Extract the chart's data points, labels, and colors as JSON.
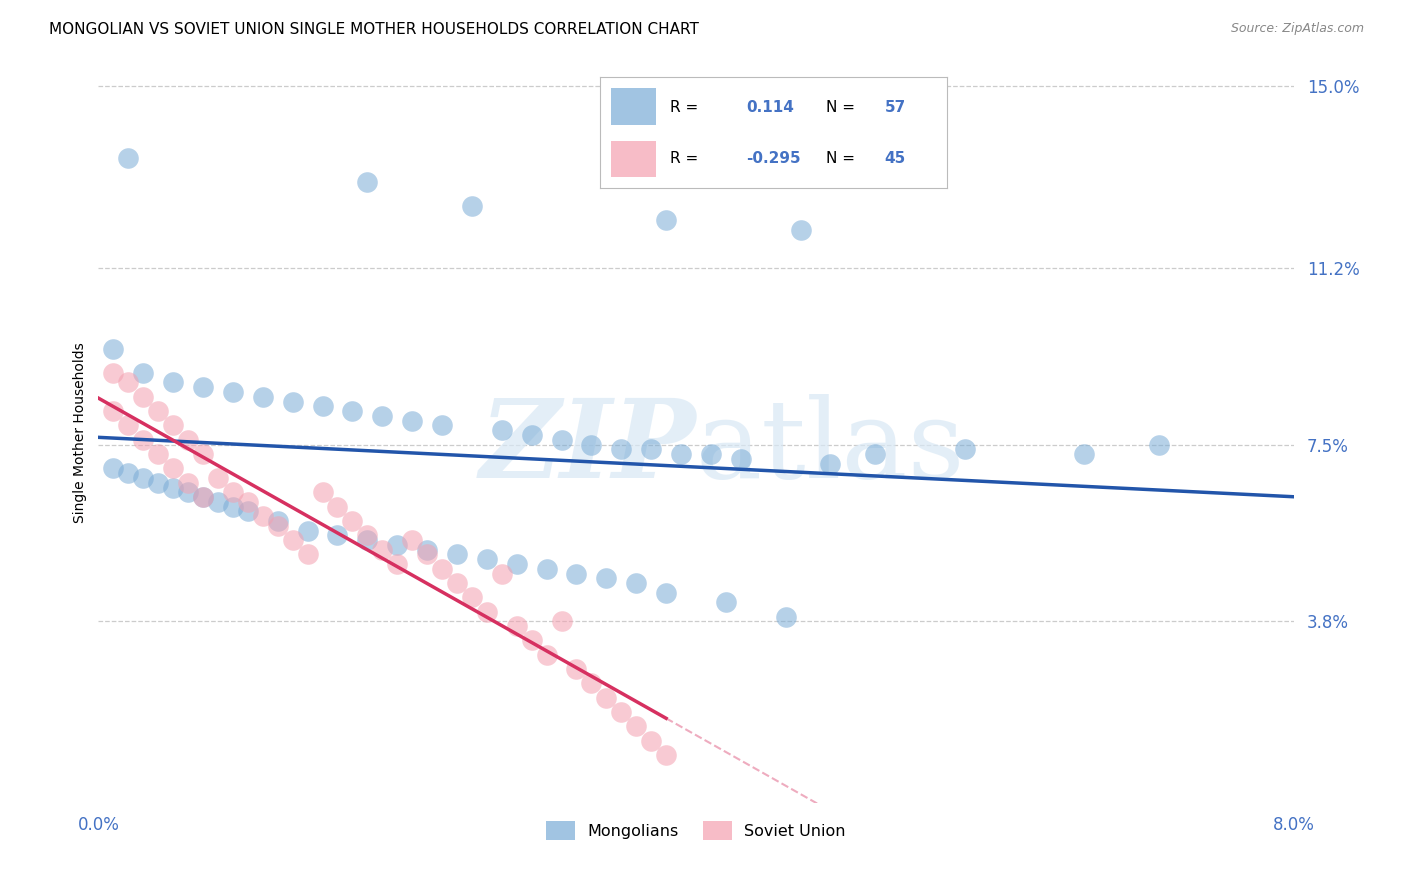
{
  "title": "MONGOLIAN VS SOVIET UNION SINGLE MOTHER HOUSEHOLDS CORRELATION CHART",
  "source": "Source: ZipAtlas.com",
  "tick_color": "#4472c4",
  "ylabel": "Single Mother Households",
  "xlim": [
    0.0,
    0.08
  ],
  "ylim": [
    0.0,
    0.155
  ],
  "mongolian_R": "0.114",
  "mongolian_N": "57",
  "soviet_R": "-0.295",
  "soviet_N": "45",
  "mongolian_color": "#7aacd6",
  "soviet_color": "#f4a0b0",
  "mongolian_line_color": "#2255aa",
  "soviet_line_color": "#d63060",
  "watermark": "ZIPatlas",
  "background_color": "#ffffff",
  "grid_color": "#cccccc",
  "title_fontsize": 11,
  "ytick_vals": [
    0.038,
    0.075,
    0.112,
    0.15
  ],
  "ytick_labels": [
    "3.8%",
    "7.5%",
    "11.2%",
    "15.0%"
  ],
  "mon_x": [
    0.002,
    0.018,
    0.025,
    0.038,
    0.047,
    0.001,
    0.003,
    0.005,
    0.007,
    0.009,
    0.011,
    0.013,
    0.015,
    0.017,
    0.019,
    0.021,
    0.023,
    0.027,
    0.029,
    0.031,
    0.033,
    0.035,
    0.037,
    0.039,
    0.041,
    0.043,
    0.049,
    0.052,
    0.058,
    0.066,
    0.071,
    0.001,
    0.002,
    0.003,
    0.004,
    0.005,
    0.006,
    0.007,
    0.008,
    0.009,
    0.01,
    0.012,
    0.014,
    0.016,
    0.018,
    0.02,
    0.022,
    0.024,
    0.026,
    0.028,
    0.03,
    0.032,
    0.034,
    0.036,
    0.038,
    0.042,
    0.046
  ],
  "mon_y": [
    0.135,
    0.13,
    0.125,
    0.122,
    0.12,
    0.095,
    0.09,
    0.088,
    0.087,
    0.086,
    0.085,
    0.084,
    0.083,
    0.082,
    0.081,
    0.08,
    0.079,
    0.078,
    0.077,
    0.076,
    0.075,
    0.074,
    0.074,
    0.073,
    0.073,
    0.072,
    0.071,
    0.073,
    0.074,
    0.073,
    0.075,
    0.07,
    0.069,
    0.068,
    0.067,
    0.066,
    0.065,
    0.064,
    0.063,
    0.062,
    0.061,
    0.059,
    0.057,
    0.056,
    0.055,
    0.054,
    0.053,
    0.052,
    0.051,
    0.05,
    0.049,
    0.048,
    0.047,
    0.046,
    0.044,
    0.042,
    0.039
  ],
  "sov_x": [
    0.001,
    0.001,
    0.002,
    0.002,
    0.003,
    0.003,
    0.004,
    0.004,
    0.005,
    0.005,
    0.006,
    0.006,
    0.007,
    0.007,
    0.008,
    0.009,
    0.01,
    0.011,
    0.012,
    0.013,
    0.014,
    0.015,
    0.016,
    0.017,
    0.018,
    0.019,
    0.02,
    0.021,
    0.022,
    0.023,
    0.024,
    0.025,
    0.026,
    0.027,
    0.028,
    0.029,
    0.03,
    0.031,
    0.032,
    0.033,
    0.034,
    0.035,
    0.036,
    0.037,
    0.038
  ],
  "sov_y": [
    0.09,
    0.082,
    0.088,
    0.079,
    0.085,
    0.076,
    0.082,
    0.073,
    0.079,
    0.07,
    0.076,
    0.067,
    0.073,
    0.064,
    0.068,
    0.065,
    0.063,
    0.06,
    0.058,
    0.055,
    0.052,
    0.065,
    0.062,
    0.059,
    0.056,
    0.053,
    0.05,
    0.055,
    0.052,
    0.049,
    0.046,
    0.043,
    0.04,
    0.048,
    0.037,
    0.034,
    0.031,
    0.038,
    0.028,
    0.025,
    0.022,
    0.019,
    0.016,
    0.013,
    0.01
  ]
}
